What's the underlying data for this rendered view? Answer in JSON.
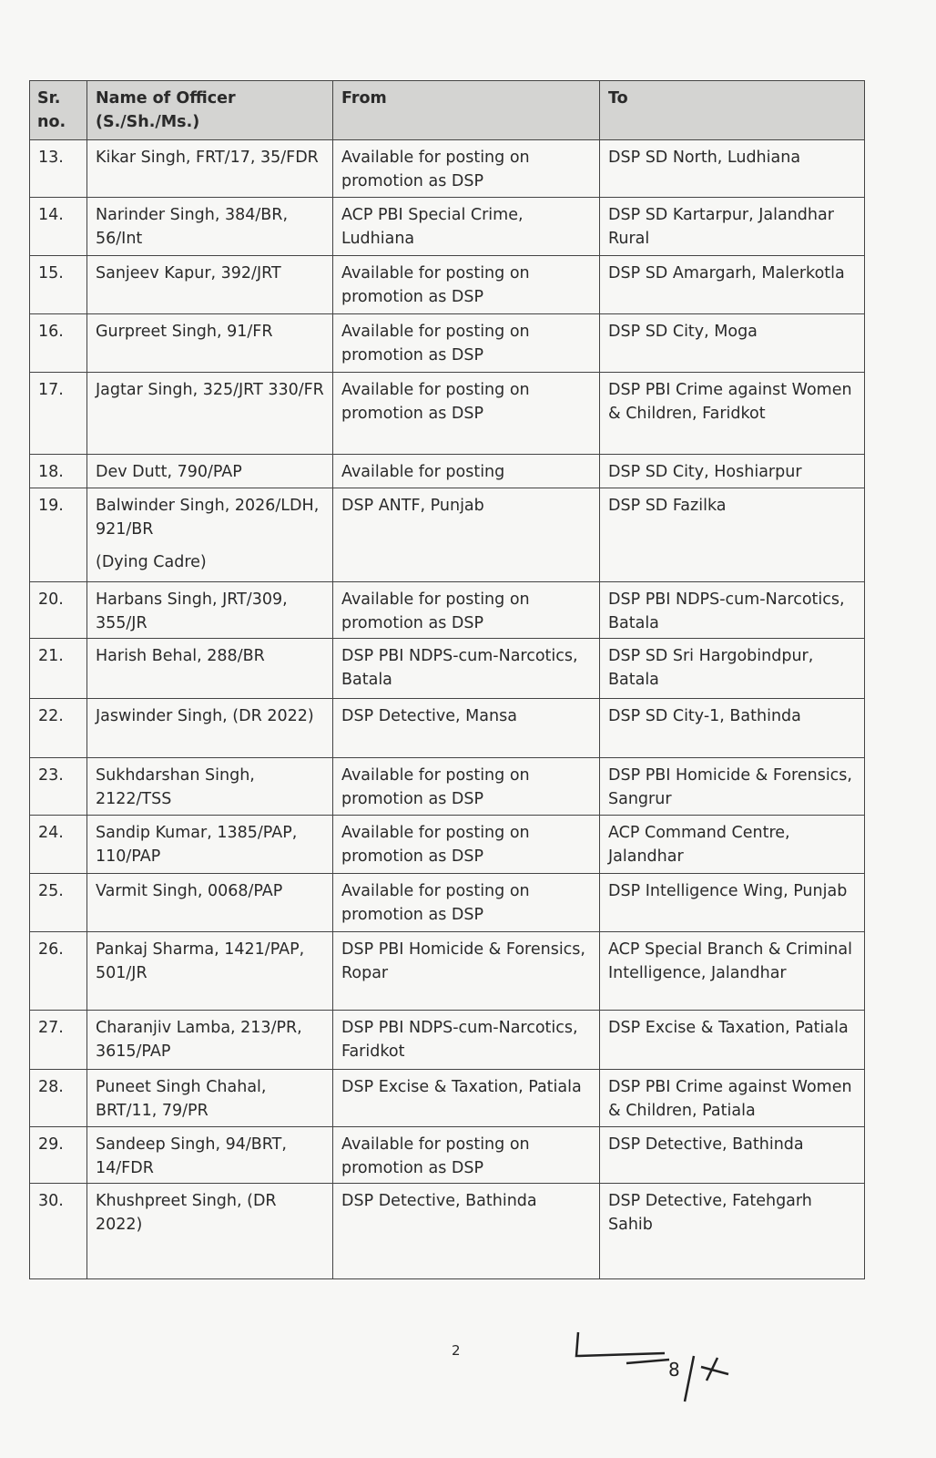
{
  "table": {
    "headers": {
      "sr": "Sr. no.",
      "name": "Name of Officer (S./Sh./Ms.)",
      "from": "From",
      "to": "To"
    },
    "rows": [
      {
        "sr": "13.",
        "name": "Kikar Singh, FRT/17, 35/FDR",
        "from": "Available for posting on promotion as DSP",
        "to": "DSP SD North, Ludhiana"
      },
      {
        "sr": "14.",
        "name": "Narinder Singh, 384/BR, 56/Int",
        "from": "ACP PBI Special Crime, Ludhiana",
        "to": "DSP SD Kartarpur, Jalandhar Rural"
      },
      {
        "sr": "15.",
        "name": "Sanjeev Kapur, 392/JRT",
        "from": "Available for posting on promotion as DSP",
        "to": "DSP SD Amargarh, Malerkotla"
      },
      {
        "sr": "16.",
        "name": "Gurpreet Singh, 91/FR",
        "from": "Available for posting on promotion as DSP",
        "to": "DSP SD City, Moga"
      },
      {
        "sr": "17.",
        "name": "Jagtar Singh, 325/JRT 330/FR",
        "from": "Available for posting on promotion as DSP",
        "to": "DSP PBI Crime against Women & Children, Faridkot"
      },
      {
        "sr": "18.",
        "name": "Dev Dutt, 790/PAP",
        "from": "Available for posting",
        "to": "DSP SD City, Hoshiarpur"
      },
      {
        "sr": "19.",
        "name": "Balwinder Singh, 2026/LDH, 921/BR",
        "note": "(Dying Cadre)",
        "from": "DSP ANTF, Punjab",
        "to": "DSP SD Fazilka"
      },
      {
        "sr": "20.",
        "name": "Harbans Singh, JRT/309, 355/JR",
        "from": "Available for posting on promotion as DSP",
        "to": "DSP PBI NDPS-cum-Narcotics, Batala"
      },
      {
        "sr": "21.",
        "name": "Harish Behal, 288/BR",
        "from": "DSP PBI NDPS-cum-Narcotics, Batala",
        "to": "DSP SD Sri Hargobindpur, Batala"
      },
      {
        "sr": "22.",
        "name": "Jaswinder Singh, (DR 2022)",
        "from": "DSP Detective, Mansa",
        "to": "DSP SD City-1, Bathinda"
      },
      {
        "sr": "23.",
        "name": "Sukhdarshan Singh, 2122/TSS",
        "from": "Available for posting on promotion as DSP",
        "to": "DSP PBI Homicide & Forensics, Sangrur"
      },
      {
        "sr": "24.",
        "name": "Sandip Kumar, 1385/PAP, 110/PAP",
        "from": "Available for posting on promotion as DSP",
        "to": "ACP Command Centre, Jalandhar"
      },
      {
        "sr": "25.",
        "name": "Varmit Singh, 0068/PAP",
        "from": "Available for posting on promotion as DSP",
        "to": "DSP Intelligence Wing, Punjab"
      },
      {
        "sr": "26.",
        "name": "Pankaj Sharma, 1421/PAP, 501/JR",
        "from": "DSP PBI Homicide & Forensics, Ropar",
        "to": "ACP Special Branch & Criminal Intelligence, Jalandhar"
      },
      {
        "sr": "27.",
        "name": "Charanjiv Lamba, 213/PR, 3615/PAP",
        "from": "DSP PBI NDPS-cum-Narcotics, Faridkot",
        "to": "DSP Excise & Taxation, Patiala"
      },
      {
        "sr": "28.",
        "name": "Puneet Singh Chahal, BRT/11, 79/PR",
        "from": "DSP Excise & Taxation, Patiala",
        "to": "DSP PBI Crime against Women & Children, Patiala"
      },
      {
        "sr": "29.",
        "name": "Sandeep Singh, 94/BRT, 14/FDR",
        "from": "Available for posting on promotion as DSP",
        "to": "DSP Detective, Bathinda"
      },
      {
        "sr": "30.",
        "name": "Khushpreet Singh, (DR 2022)",
        "from": "DSP Detective, Bathinda",
        "to": "DSP Detective, Fatehgarh Sahib"
      }
    ]
  },
  "footer": {
    "page_number": "2",
    "signature_text": "8/x"
  }
}
